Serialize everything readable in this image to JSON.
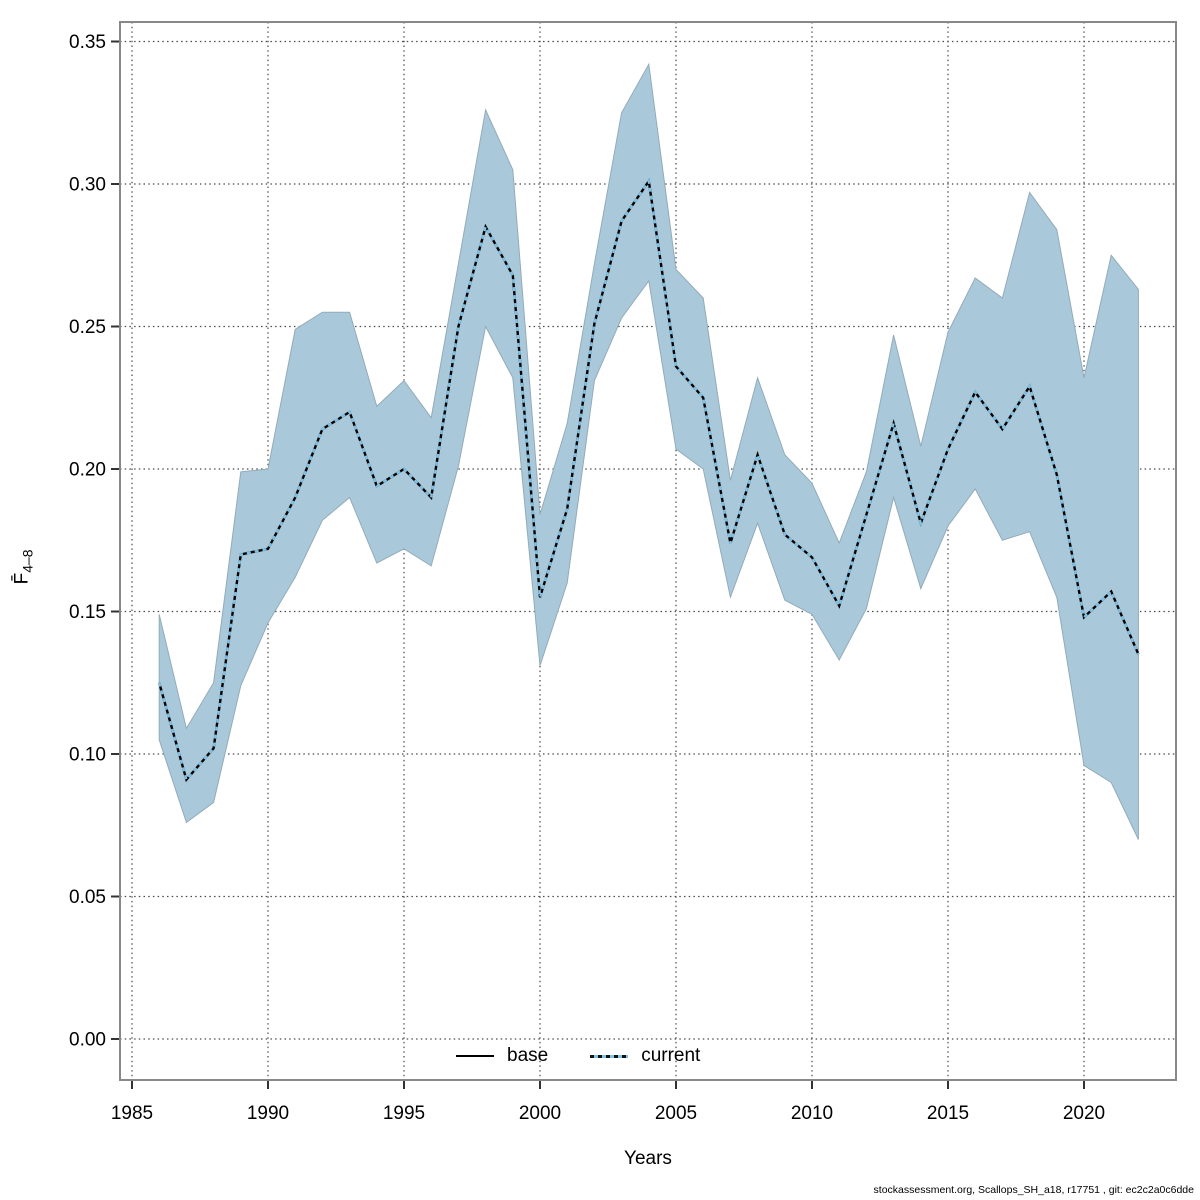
{
  "figure": {
    "xlabel": "Years",
    "ylabel_base": "F̄",
    "ylabel_sub": "4–8",
    "footer": "stockassessment.org, Scallops_SH_a18, r17751 , git: ec2c2a0c6dde",
    "legend": [
      {
        "label": "base",
        "style": "solid",
        "color": "#000000"
      },
      {
        "label": "current",
        "style": "dotted",
        "color": "#7fc2e6"
      }
    ],
    "colors": {
      "band_fill": "#a9c9da",
      "band_edge": "#93abb8",
      "base_line": "#000000",
      "current_line": "#7fc2e6",
      "grid": "#4a4a4a",
      "frame": "#888888",
      "tick": "#333333"
    }
  },
  "chart_data": {
    "type": "line",
    "title": "",
    "xlabel": "Years",
    "ylabel": "Fbar(4-8)",
    "grid": "dotted",
    "legend_position": "bottom-center",
    "xlim": [
      1984.56,
      2023.4
    ],
    "ylim": [
      -0.014,
      0.357
    ],
    "xticks": [
      1985,
      1990,
      1995,
      2000,
      2005,
      2010,
      2015,
      2020
    ],
    "yticks": [
      0.0,
      0.05,
      0.1,
      0.15,
      0.2,
      0.25,
      0.3,
      0.35
    ],
    "x": [
      1986,
      1987,
      1988,
      1989,
      1990,
      1991,
      1992,
      1993,
      1994,
      1995,
      1996,
      1997,
      1998,
      1999,
      2000,
      2001,
      2002,
      2003,
      2004,
      2005,
      2006,
      2007,
      2008,
      2009,
      2010,
      2011,
      2012,
      2013,
      2014,
      2015,
      2016,
      2017,
      2018,
      2019,
      2020,
      2021,
      2022
    ],
    "series": [
      {
        "name": "base",
        "values": [
          0.125,
          0.091,
          0.102,
          0.17,
          0.172,
          0.19,
          0.214,
          0.22,
          0.194,
          0.2,
          0.19,
          0.25,
          0.285,
          0.268,
          0.155,
          0.186,
          0.251,
          0.287,
          0.301,
          0.236,
          0.225,
          0.174,
          0.205,
          0.177,
          0.169,
          0.152,
          0.184,
          0.216,
          0.181,
          0.207,
          0.227,
          0.214,
          0.229,
          0.198,
          0.148,
          0.157,
          0.135
        ]
      },
      {
        "name": "current",
        "values": [
          0.125,
          0.091,
          0.102,
          0.17,
          0.172,
          0.19,
          0.214,
          0.22,
          0.194,
          0.2,
          0.19,
          0.25,
          0.285,
          0.268,
          0.155,
          0.186,
          0.251,
          0.287,
          0.301,
          0.236,
          0.225,
          0.174,
          0.205,
          0.177,
          0.169,
          0.152,
          0.184,
          0.216,
          0.181,
          0.207,
          0.227,
          0.214,
          0.229,
          0.198,
          0.148,
          0.157,
          0.135
        ],
        "ci_lower": [
          0.105,
          0.076,
          0.083,
          0.124,
          0.146,
          0.162,
          0.182,
          0.19,
          0.167,
          0.172,
          0.166,
          0.201,
          0.25,
          0.232,
          0.131,
          0.16,
          0.231,
          0.253,
          0.266,
          0.207,
          0.2,
          0.155,
          0.181,
          0.154,
          0.149,
          0.133,
          0.151,
          0.19,
          0.158,
          0.18,
          0.193,
          0.175,
          0.178,
          0.155,
          0.096,
          0.09,
          0.07
        ],
        "ci_upper": [
          0.149,
          0.109,
          0.125,
          0.199,
          0.2,
          0.249,
          0.255,
          0.255,
          0.222,
          0.231,
          0.218,
          0.272,
          0.326,
          0.305,
          0.184,
          0.216,
          0.272,
          0.325,
          0.342,
          0.27,
          0.26,
          0.196,
          0.232,
          0.205,
          0.195,
          0.174,
          0.199,
          0.247,
          0.208,
          0.248,
          0.267,
          0.26,
          0.297,
          0.284,
          0.232,
          0.275,
          0.263
        ]
      }
    ]
  }
}
